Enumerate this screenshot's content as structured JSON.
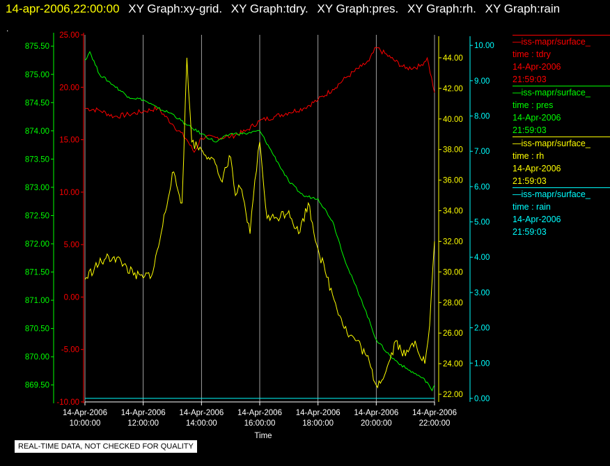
{
  "header": {
    "timestamp": "14-apr-2006,22:00:00",
    "graphs": [
      "XY Graph:xy-grid.",
      "XY Graph:tdry.",
      "XY Graph:pres.",
      "XY Graph:rh.",
      "XY Graph:rain"
    ],
    "dot": "."
  },
  "footer": {
    "notice": "REAL-TIME DATA, NOT CHECKED FOR QUALITY"
  },
  "legend": [
    {
      "source": "iss-mapr/surface_",
      "field": "time : tdry",
      "date": "14-Apr-2006",
      "time": "21:59:03",
      "color": "#ff0000"
    },
    {
      "source": "iss-mapr/surface_",
      "field": "time : pres",
      "date": "14-Apr-2006",
      "time": "21:59:03",
      "color": "#00ff00"
    },
    {
      "source": "iss-mapr/surface_",
      "field": "time : rh",
      "date": "14-Apr-2006",
      "time": "21:59:03",
      "color": "#ffff00"
    },
    {
      "source": "iss-mapr/surface_",
      "field": "time : rain",
      "date": "14-Apr-2006",
      "time": "21:59:03",
      "color": "#00ffff"
    }
  ],
  "chart_data": {
    "type": "line",
    "xlabel": "Time",
    "x_ticks": [
      {
        "date": "14-Apr-2006",
        "time": "10:00:00"
      },
      {
        "date": "14-Apr-2006",
        "time": "12:00:00"
      },
      {
        "date": "14-Apr-2006",
        "time": "14:00:00"
      },
      {
        "date": "14-Apr-2006",
        "time": "16:00:00"
      },
      {
        "date": "14-Apr-2006",
        "time": "18:00:00"
      },
      {
        "date": "14-Apr-2006",
        "time": "20:00:00"
      },
      {
        "date": "14-Apr-2006",
        "time": "22:00:00"
      }
    ],
    "x_range": [
      "14-Apr-2006 10:00:00",
      "14-Apr-2006 22:00:00"
    ],
    "grid": "vertical",
    "axes": {
      "pres": {
        "color": "#00ff00",
        "ylim": [
          869.2,
          875.7
        ],
        "ticks": [
          "869.50",
          "870.00",
          "870.50",
          "871.00",
          "871.50",
          "872.00",
          "872.50",
          "873.00",
          "873.50",
          "874.00",
          "874.50",
          "875.00",
          "875.50"
        ]
      },
      "tdry": {
        "color": "#ff0000",
        "ylim": [
          -10,
          25
        ],
        "ticks": [
          "-10.00",
          "-5.00",
          "0.00",
          "5.00",
          "10.00",
          "15.00",
          "20.00",
          "25.00"
        ]
      },
      "rh": {
        "color": "#ffff00",
        "ylim": [
          21.5,
          45.5
        ],
        "ticks": [
          "22.00",
          "24.00",
          "26.00",
          "28.00",
          "30.00",
          "32.00",
          "34.00",
          "36.00",
          "38.00",
          "40.00",
          "42.00",
          "44.00"
        ]
      },
      "rain": {
        "color": "#00ffff",
        "ylim": [
          -0.1,
          10.3
        ],
        "ticks": [
          "0.00",
          "1.00",
          "2.00",
          "3.00",
          "4.00",
          "5.00",
          "6.00",
          "7.00",
          "8.00",
          "9.00",
          "10.00"
        ]
      }
    },
    "series": [
      {
        "name": "tdry",
        "color": "#ff0000",
        "x": [
          "10:00",
          "10:30",
          "11:00",
          "11:30",
          "12:00",
          "12:30",
          "13:00",
          "13:30",
          "13:45",
          "14:00",
          "14:30",
          "15:00",
          "15:30",
          "16:00",
          "16:30",
          "17:00",
          "17:30",
          "18:00",
          "18:30",
          "19:00",
          "19:30",
          "19:45",
          "20:00",
          "20:30",
          "21:00",
          "21:30",
          "21:45",
          "22:00"
        ],
        "values": [
          18.0,
          17.8,
          17.2,
          17.4,
          17.7,
          18.0,
          16.5,
          15.0,
          13.8,
          15.2,
          15.2,
          15.3,
          15.8,
          16.8,
          17.2,
          17.6,
          18.0,
          18.8,
          19.8,
          21.0,
          22.0,
          22.5,
          23.8,
          22.8,
          21.8,
          22.0,
          22.8,
          19.5
        ]
      },
      {
        "name": "pres",
        "color": "#00ff00",
        "x": [
          "10:00",
          "10:10",
          "10:30",
          "11:00",
          "11:30",
          "12:00",
          "12:30",
          "13:00",
          "13:30",
          "14:00",
          "14:30",
          "15:00",
          "15:30",
          "16:00",
          "16:20",
          "16:40",
          "17:00",
          "17:30",
          "18:00",
          "18:30",
          "19:00",
          "19:30",
          "20:00",
          "20:30",
          "21:00",
          "21:30",
          "21:45",
          "21:55",
          "22:00"
        ],
        "values": [
          875.25,
          875.4,
          875.0,
          874.8,
          874.6,
          874.55,
          874.4,
          874.3,
          874.1,
          873.95,
          873.8,
          873.95,
          873.95,
          874.0,
          873.7,
          873.4,
          873.1,
          872.85,
          872.8,
          872.4,
          871.6,
          871.0,
          870.3,
          870.0,
          869.8,
          869.65,
          869.55,
          869.4,
          869.5
        ]
      },
      {
        "name": "rh",
        "color": "#ffff00",
        "x": [
          "10:00",
          "10:20",
          "10:40",
          "11:00",
          "11:20",
          "11:40",
          "12:00",
          "12:20",
          "12:40",
          "13:00",
          "13:20",
          "13:30",
          "13:40",
          "14:00",
          "14:20",
          "14:40",
          "15:00",
          "15:10",
          "15:20",
          "15:40",
          "15:50",
          "16:00",
          "16:15",
          "16:30",
          "17:00",
          "17:20",
          "17:40",
          "18:00",
          "18:15",
          "18:30",
          "19:00",
          "19:20",
          "19:40",
          "20:00",
          "20:20",
          "20:40",
          "21:00",
          "21:20",
          "21:40",
          "21:50",
          "22:00"
        ],
        "values": [
          29.5,
          30.3,
          30.8,
          31.0,
          30.5,
          29.8,
          29.6,
          30.0,
          33.0,
          36.5,
          34.5,
          44.0,
          38.5,
          38.0,
          37.5,
          36.0,
          37.5,
          35.0,
          35.5,
          32.5,
          36.0,
          38.5,
          33.5,
          33.5,
          34.0,
          32.5,
          34.5,
          31.5,
          30.0,
          28.5,
          26.0,
          25.5,
          24.5,
          22.6,
          23.5,
          25.5,
          24.5,
          25.5,
          24.0,
          26.5,
          32.0
        ]
      },
      {
        "name": "rain",
        "color": "#00ffff",
        "x": [
          "10:00",
          "22:00"
        ],
        "values": [
          0.0,
          0.0
        ]
      }
    ]
  }
}
